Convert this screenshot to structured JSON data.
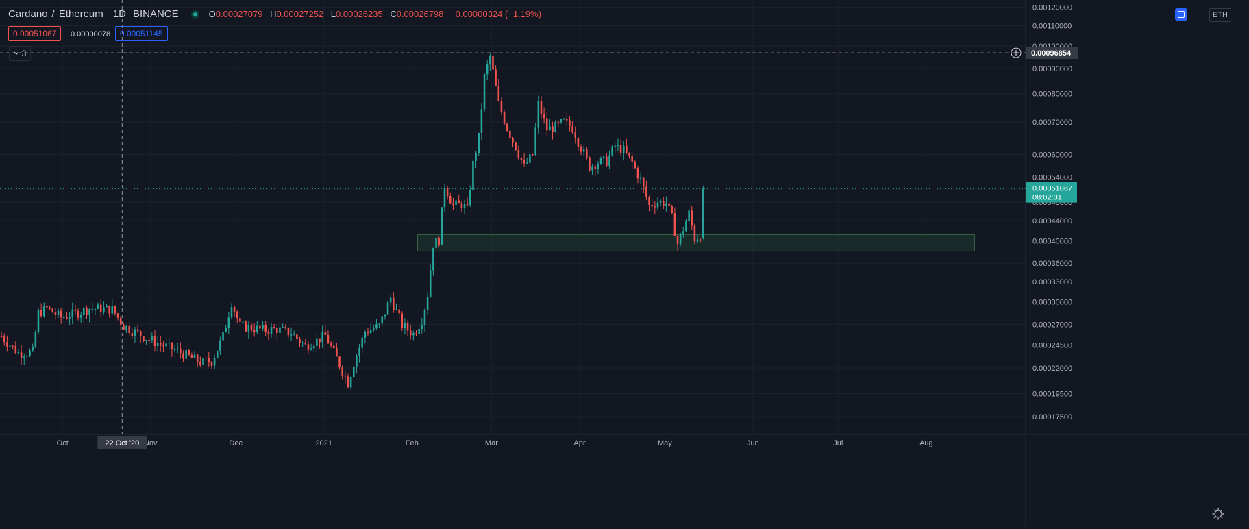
{
  "header": {
    "base": "Cardano",
    "sep": "/",
    "quote": "Ethereum",
    "interval": "1D",
    "exchange": "BINANCE",
    "o_label": "O",
    "o": "0.00027079",
    "h_label": "H",
    "h": "0.00027252",
    "l_label": "L",
    "l": "0.00026235",
    "c_label": "C",
    "c": "0.00026798",
    "change": "−0.00000324 (−1.19%)"
  },
  "trade": {
    "sell": "0.00051067",
    "spread": "0.00000078",
    "buy": "0.00051145"
  },
  "indicators_toggle": {
    "count": "3",
    "icon": "chevron-down-icon"
  },
  "currency_label": "ETH",
  "colors": {
    "background": "#131722",
    "grid": "#1e222d",
    "up": "#26a69a",
    "down": "#ef5350",
    "text": "#b2b5be",
    "zone_fill": "#1d3b30",
    "zone_border": "#3a6b4a",
    "crosshair": "#9598a1",
    "last_price": "#26a69a"
  },
  "chart_data": {
    "type": "candlestick",
    "scale": "log",
    "ylim": [
      0.000163,
      0.00121
    ],
    "price_ticks": [
      "0.00120000",
      "0.00110000",
      "0.00100000",
      "0.00090000",
      "0.00080000",
      "0.00070000",
      "0.00060000",
      "0.00054000",
      "0.00048000",
      "0.00044000",
      "0.00040000",
      "0.00036000",
      "0.00033000",
      "0.00030000",
      "0.00027000",
      "0.00024500",
      "0.00022000",
      "0.00019500",
      "0.00017500"
    ],
    "time_ticks": [
      {
        "date": "2020-10-01",
        "label": "Oct"
      },
      {
        "date": "2020-11-01",
        "label": "Nov"
      },
      {
        "date": "2020-12-01",
        "label": "Dec"
      },
      {
        "date": "2021-01-01",
        "label": "2021"
      },
      {
        "date": "2021-02-01",
        "label": "Feb"
      },
      {
        "date": "2021-03-01",
        "label": "Mar"
      },
      {
        "date": "2021-04-01",
        "label": "Apr"
      },
      {
        "date": "2021-05-01",
        "label": "May"
      },
      {
        "date": "2021-06-01",
        "label": "Jun"
      },
      {
        "date": "2021-07-01",
        "label": "Jul"
      },
      {
        "date": "2021-08-01",
        "label": "Aug"
      }
    ],
    "x_range": [
      "2020-09-09",
      "2021-09-05"
    ],
    "crosshair": {
      "date": "2020-10-22",
      "date_label": "22 Oct '20",
      "price": 0.00096854,
      "price_label": "0.00096854"
    },
    "last_price": {
      "value": 0.00051067,
      "label": "0.00051067",
      "countdown": "08:02:01"
    },
    "support_zone": {
      "start": "2021-02-03",
      "end": "2021-08-18",
      "low": 0.000381,
      "high": 0.000412
    },
    "close_series": [
      {
        "date": "2020-09-09",
        "close": 0.000255
      },
      {
        "date": "2020-09-15",
        "close": 0.000236
      },
      {
        "date": "2020-09-20",
        "close": 0.000237
      },
      {
        "date": "2020-09-22",
        "close": 0.000285
      },
      {
        "date": "2020-09-25",
        "close": 0.000291
      },
      {
        "date": "2020-09-30",
        "close": 0.000279
      },
      {
        "date": "2020-10-05",
        "close": 0.000284
      },
      {
        "date": "2020-10-10",
        "close": 0.000291
      },
      {
        "date": "2020-10-18",
        "close": 0.00029
      },
      {
        "date": "2020-10-22",
        "close": 0.000268
      },
      {
        "date": "2020-11-01",
        "close": 0.00025
      },
      {
        "date": "2020-11-10",
        "close": 0.000238
      },
      {
        "date": "2020-11-18",
        "close": 0.000226
      },
      {
        "date": "2020-11-22",
        "close": 0.000227
      },
      {
        "date": "2020-11-26",
        "close": 0.000255
      },
      {
        "date": "2020-11-29",
        "close": 0.0003
      },
      {
        "date": "2020-12-02",
        "close": 0.000268
      },
      {
        "date": "2020-12-10",
        "close": 0.000263
      },
      {
        "date": "2020-12-15",
        "close": 0.000264
      },
      {
        "date": "2020-12-20",
        "close": 0.000259
      },
      {
        "date": "2020-12-25",
        "close": 0.000244
      },
      {
        "date": "2021-01-01",
        "close": 0.000256
      },
      {
        "date": "2021-01-05",
        "close": 0.00023
      },
      {
        "date": "2021-01-09",
        "close": 0.000205
      },
      {
        "date": "2021-01-11",
        "close": 0.000225
      },
      {
        "date": "2021-01-15",
        "close": 0.000261
      },
      {
        "date": "2021-01-20",
        "close": 0.000268
      },
      {
        "date": "2021-01-24",
        "close": 0.000306
      },
      {
        "date": "2021-01-28",
        "close": 0.000269
      },
      {
        "date": "2021-02-01",
        "close": 0.000258
      },
      {
        "date": "2021-02-04",
        "close": 0.000276
      },
      {
        "date": "2021-02-06",
        "close": 0.000311
      },
      {
        "date": "2021-02-08",
        "close": 0.000394
      },
      {
        "date": "2021-02-10",
        "close": 0.000402
      },
      {
        "date": "2021-02-12",
        "close": 0.00052
      },
      {
        "date": "2021-02-15",
        "close": 0.000472
      },
      {
        "date": "2021-02-18",
        "close": 0.000475
      },
      {
        "date": "2021-02-20",
        "close": 0.000463
      },
      {
        "date": "2021-02-22",
        "close": 0.000574
      },
      {
        "date": "2021-02-24",
        "close": 0.00065
      },
      {
        "date": "2021-02-26",
        "close": 0.000865
      },
      {
        "date": "2021-02-28",
        "close": 0.000952
      },
      {
        "date": "2021-03-03",
        "close": 0.000762
      },
      {
        "date": "2021-03-06",
        "close": 0.00068
      },
      {
        "date": "2021-03-09",
        "close": 0.000623
      },
      {
        "date": "2021-03-12",
        "close": 0.000566
      },
      {
        "date": "2021-03-15",
        "close": 0.0006
      },
      {
        "date": "2021-03-17",
        "close": 0.000762
      },
      {
        "date": "2021-03-20",
        "close": 0.000676
      },
      {
        "date": "2021-03-23",
        "close": 0.000683
      },
      {
        "date": "2021-03-26",
        "close": 0.0007
      },
      {
        "date": "2021-03-29",
        "close": 0.00068
      },
      {
        "date": "2021-04-01",
        "close": 0.00062
      },
      {
        "date": "2021-04-04",
        "close": 0.000568
      },
      {
        "date": "2021-04-07",
        "close": 0.000578
      },
      {
        "date": "2021-04-10",
        "close": 0.000582
      },
      {
        "date": "2021-04-13",
        "close": 0.000625
      },
      {
        "date": "2021-04-16",
        "close": 0.000612
      },
      {
        "date": "2021-04-19",
        "close": 0.000577
      },
      {
        "date": "2021-04-22",
        "close": 0.000532
      },
      {
        "date": "2021-04-25",
        "close": 0.000472
      },
      {
        "date": "2021-04-28",
        "close": 0.000481
      },
      {
        "date": "2021-05-01",
        "close": 0.000478
      },
      {
        "date": "2021-05-03",
        "close": 0.000445
      },
      {
        "date": "2021-05-05",
        "close": 0.000395
      },
      {
        "date": "2021-05-07",
        "close": 0.000423
      },
      {
        "date": "2021-05-09",
        "close": 0.000455
      },
      {
        "date": "2021-05-11",
        "close": 0.000404
      },
      {
        "date": "2021-05-13",
        "close": 0.000411
      },
      {
        "date": "2021-05-14",
        "close": 0.000511
      }
    ]
  }
}
